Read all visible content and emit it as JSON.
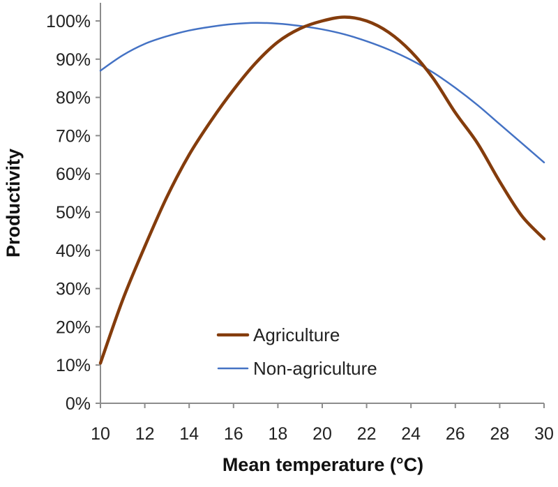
{
  "chart_data": {
    "type": "line",
    "title": "",
    "xlabel": "Mean temperature (°C)",
    "ylabel": "Productivity",
    "xlim": [
      10,
      30
    ],
    "ylim": [
      0,
      100
    ],
    "x_ticks": [
      10,
      12,
      14,
      16,
      18,
      20,
      22,
      24,
      26,
      28,
      30
    ],
    "x_tick_labels": [
      "10",
      "12",
      "14",
      "16",
      "18",
      "20",
      "22",
      "24",
      "26",
      "28",
      "30"
    ],
    "y_ticks": [
      0,
      10,
      20,
      30,
      40,
      50,
      60,
      70,
      80,
      90,
      100
    ],
    "y_tick_labels": [
      "0%",
      "10%",
      "20%",
      "30%",
      "40%",
      "50%",
      "60%",
      "70%",
      "80%",
      "90%",
      "100%"
    ],
    "grid": false,
    "legend": {
      "position": "bottom-center",
      "entries": [
        "Agriculture",
        "Non-agriculture"
      ]
    },
    "series": [
      {
        "name": "Agriculture",
        "color": "#843C0C",
        "x": [
          10,
          11,
          12,
          13,
          14,
          15,
          16,
          17,
          18,
          19,
          20,
          21,
          22,
          23,
          24,
          25,
          26,
          27,
          28,
          29,
          30
        ],
        "y": [
          10.5,
          27,
          41,
          54,
          65,
          74,
          82,
          89,
          94.5,
          98,
          100,
          101,
          100,
          97,
          92,
          85,
          76,
          68,
          58,
          49,
          43
        ]
      },
      {
        "name": "Non-agriculture",
        "color": "#4472C4",
        "x": [
          10,
          11,
          12,
          13,
          14,
          15,
          16,
          17,
          18,
          19,
          20,
          21,
          22,
          23,
          24,
          25,
          26,
          27,
          28,
          29,
          30
        ],
        "y": [
          87,
          91,
          94,
          96,
          97.5,
          98.5,
          99.2,
          99.5,
          99.3,
          98.7,
          97.8,
          96.5,
          94.7,
          92.5,
          89.8,
          86.5,
          82.5,
          78,
          73,
          68,
          63
        ]
      }
    ]
  }
}
